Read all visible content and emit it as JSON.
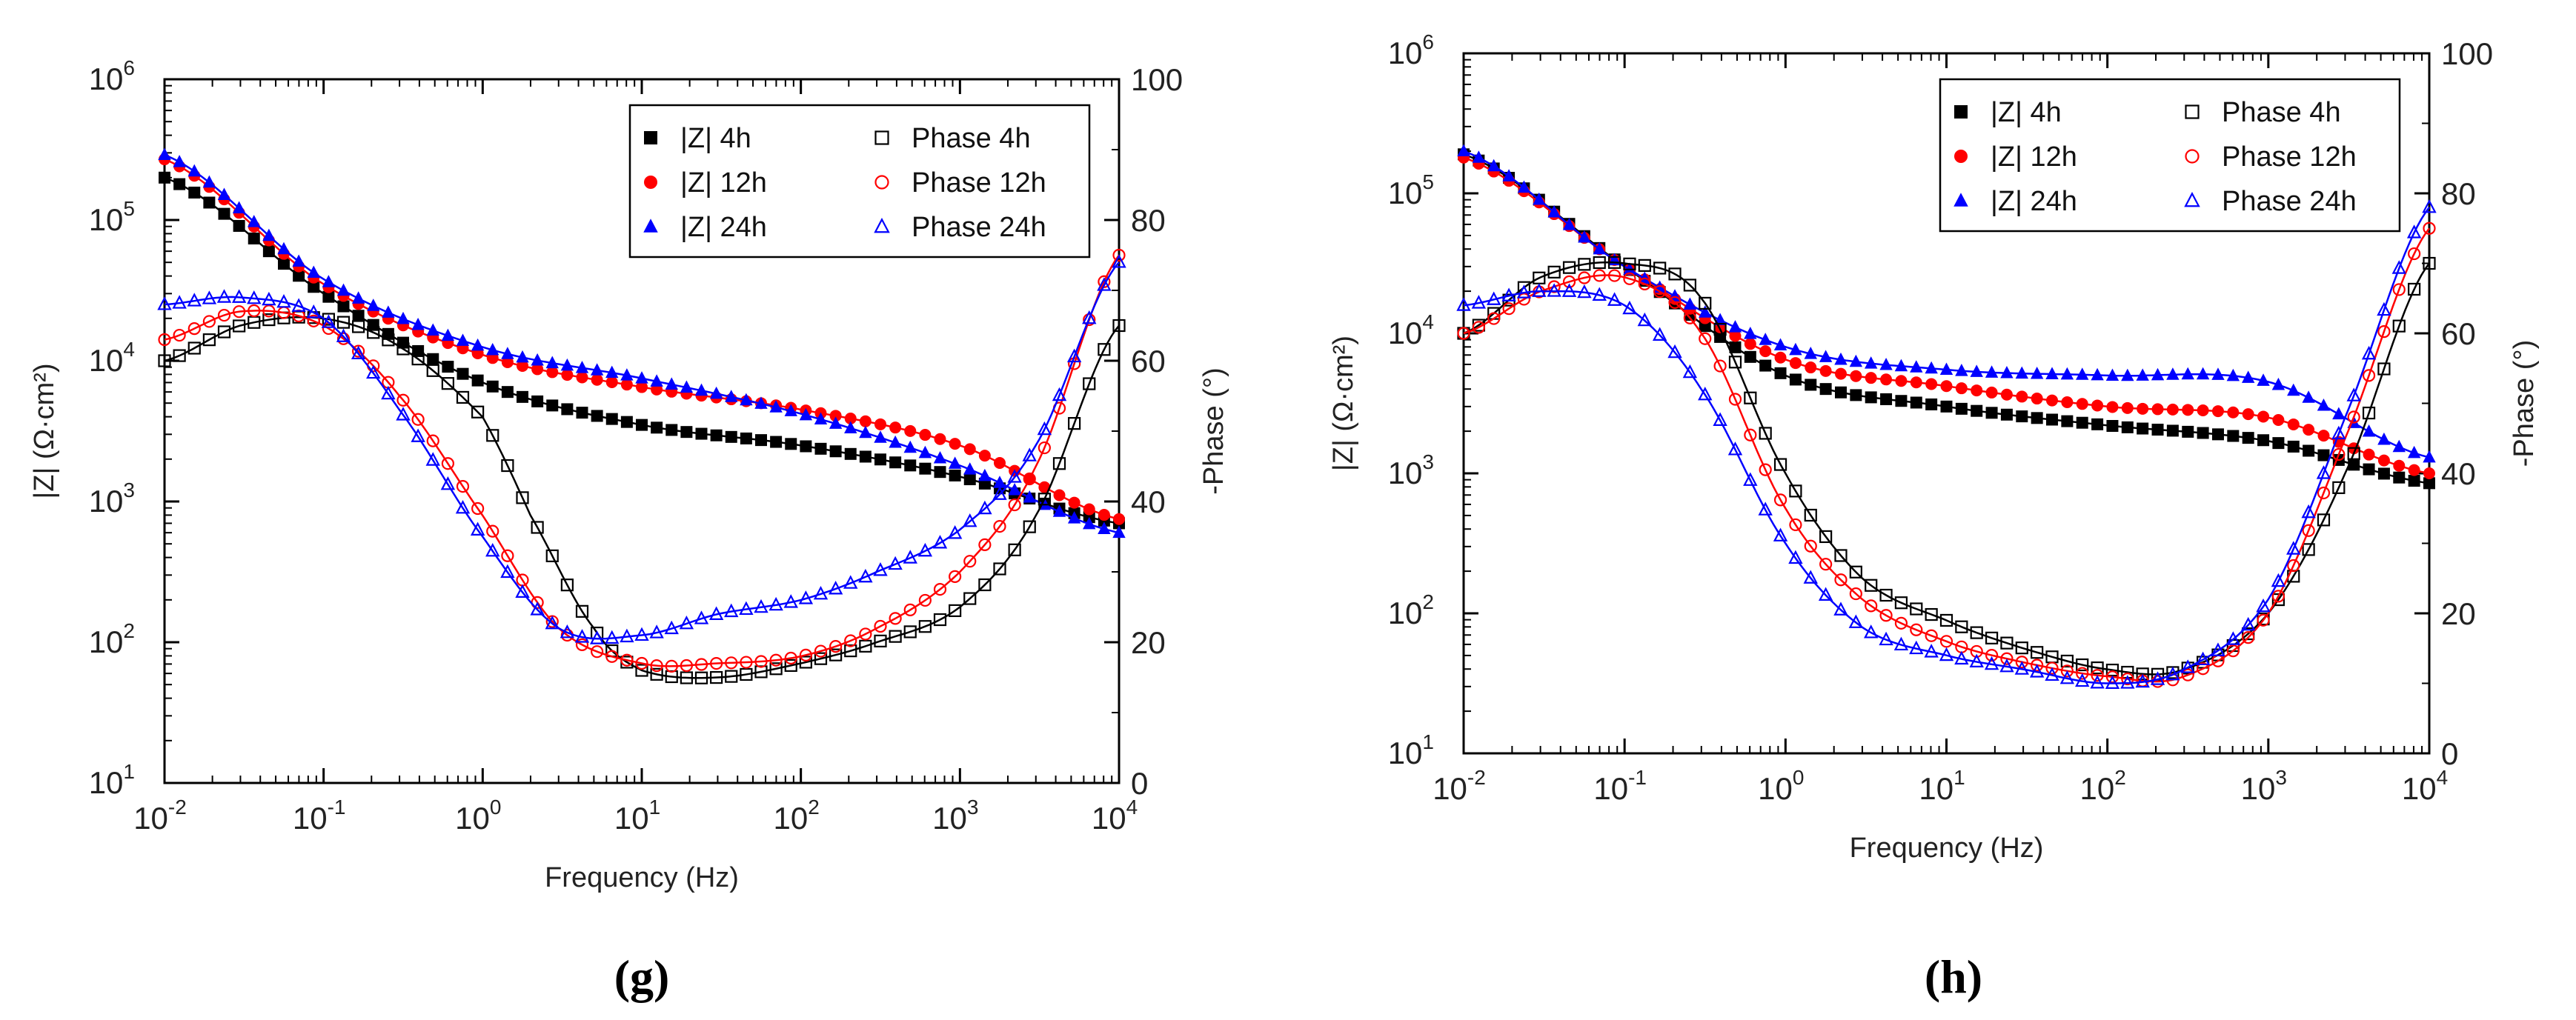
{
  "chart_data": [
    {
      "type": "scatter",
      "panel_label": "(g)",
      "xlabel": "Frequency (Hz)",
      "ylabel_left": "|Z| (Ω·cm²)",
      "ylabel_right": "-Phase (°)",
      "x_scale": "log",
      "y_left_scale": "log",
      "xlim": [
        0.01,
        10000
      ],
      "y_left_lim": [
        10,
        1000000
      ],
      "y_right_lim": [
        0,
        100
      ],
      "x_ticks": [
        {
          "base": "10",
          "exp": "-2"
        },
        {
          "base": "10",
          "exp": "-1"
        },
        {
          "base": "10",
          "exp": "0"
        },
        {
          "base": "10",
          "exp": "1"
        },
        {
          "base": "10",
          "exp": "2"
        },
        {
          "base": "10",
          "exp": "3"
        },
        {
          "base": "10",
          "exp": "4"
        }
      ],
      "y_left_ticks": [
        {
          "base": "10",
          "exp": "1"
        },
        {
          "base": "10",
          "exp": "2"
        },
        {
          "base": "10",
          "exp": "3"
        },
        {
          "base": "10",
          "exp": "4"
        },
        {
          "base": "10",
          "exp": "5"
        },
        {
          "base": "10",
          "exp": "6"
        }
      ],
      "y_right_ticks": [
        "0",
        "20",
        "40",
        "60",
        "80",
        "100"
      ],
      "legend_position": "top-right",
      "series": [
        {
          "name": "|Z| 4h",
          "axis": "left",
          "color": "#000000",
          "marker": "square-filled",
          "x": [
            0.01,
            0.1,
            1,
            10,
            100,
            1000,
            10000
          ],
          "y": [
            200000,
            30000,
            7000,
            3500,
            2500,
            1500,
            700
          ]
        },
        {
          "name": "|Z| 12h",
          "axis": "left",
          "color": "#ff0000",
          "marker": "circle-filled",
          "x": [
            0.01,
            0.1,
            1,
            10,
            100,
            1000,
            10000
          ],
          "y": [
            270000,
            35000,
            11000,
            6500,
            4500,
            2500,
            750
          ]
        },
        {
          "name": "|Z| 24h",
          "axis": "left",
          "color": "#0000ff",
          "marker": "triangle-filled",
          "x": [
            0.01,
            0.1,
            1,
            10,
            100,
            1000,
            10000
          ],
          "y": [
            290000,
            38000,
            12500,
            7500,
            4200,
            1800,
            600
          ]
        },
        {
          "name": "Phase 4h",
          "axis": "right",
          "color": "#000000",
          "marker": "square-open",
          "x": [
            0.01,
            0.03,
            0.1,
            0.3,
            1,
            2,
            5,
            10,
            30,
            100,
            300,
            1000,
            3000,
            10000
          ],
          "y": [
            60,
            65,
            66,
            62,
            52,
            38,
            22,
            16,
            15,
            17,
            20,
            25,
            38,
            65
          ]
        },
        {
          "name": "Phase 12h",
          "axis": "right",
          "color": "#ff0000",
          "marker": "circle-open",
          "x": [
            0.01,
            0.03,
            0.1,
            0.3,
            1,
            3,
            10,
            30,
            100,
            300,
            1000,
            3000,
            10000
          ],
          "y": [
            63,
            67,
            65,
            55,
            38,
            22,
            17,
            17,
            18,
            22,
            30,
            45,
            75
          ]
        },
        {
          "name": "Phase 24h",
          "axis": "right",
          "color": "#0000ff",
          "marker": "triangle-open",
          "x": [
            0.01,
            0.03,
            0.1,
            0.3,
            1,
            3,
            10,
            30,
            100,
            300,
            1000,
            3000,
            10000
          ],
          "y": [
            68,
            69,
            66,
            53,
            35,
            22,
            21,
            24,
            26,
            30,
            36,
            48,
            74
          ]
        }
      ]
    },
    {
      "type": "scatter",
      "panel_label": "(h)",
      "xlabel": "Frequency (Hz)",
      "ylabel_left": "|Z| (Ω·cm²)",
      "ylabel_right": "-Phase (°)",
      "x_scale": "log",
      "y_left_scale": "log",
      "xlim": [
        0.01,
        10000
      ],
      "y_left_lim": [
        10,
        1000000
      ],
      "y_right_lim": [
        0,
        100
      ],
      "x_ticks": [
        {
          "base": "10",
          "exp": "-2"
        },
        {
          "base": "10",
          "exp": "-1"
        },
        {
          "base": "10",
          "exp": "0"
        },
        {
          "base": "10",
          "exp": "1"
        },
        {
          "base": "10",
          "exp": "2"
        },
        {
          "base": "10",
          "exp": "3"
        },
        {
          "base": "10",
          "exp": "4"
        }
      ],
      "y_left_ticks": [
        {
          "base": "10",
          "exp": "1"
        },
        {
          "base": "10",
          "exp": "2"
        },
        {
          "base": "10",
          "exp": "3"
        },
        {
          "base": "10",
          "exp": "4"
        },
        {
          "base": "10",
          "exp": "5"
        },
        {
          "base": "10",
          "exp": "6"
        }
      ],
      "y_right_ticks": [
        "0",
        "20",
        "40",
        "60",
        "80",
        "100"
      ],
      "legend_position": "top-right",
      "series": [
        {
          "name": "|Z| 4h",
          "axis": "left",
          "color": "#000000",
          "marker": "square-filled",
          "x": [
            0.01,
            0.1,
            1,
            10,
            100,
            1000,
            10000
          ],
          "y": [
            190000,
            30000,
            5000,
            3000,
            2200,
            1700,
            850
          ]
        },
        {
          "name": "|Z| 12h",
          "axis": "left",
          "color": "#ff0000",
          "marker": "circle-filled",
          "x": [
            0.01,
            0.1,
            1,
            10,
            100,
            1000,
            10000
          ],
          "y": [
            180000,
            30000,
            6500,
            4200,
            3000,
            2500,
            1000
          ]
        },
        {
          "name": "|Z| 24h",
          "axis": "left",
          "color": "#0000ff",
          "marker": "triangle-filled",
          "x": [
            0.01,
            0.1,
            1,
            10,
            100,
            1000,
            10000
          ],
          "y": [
            200000,
            30000,
            8000,
            5500,
            5000,
            4500,
            1300
          ]
        },
        {
          "name": "Phase 4h",
          "axis": "right",
          "color": "#000000",
          "marker": "square-open",
          "x": [
            0.01,
            0.03,
            0.1,
            0.3,
            1,
            3,
            10,
            30,
            100,
            300,
            1000,
            3000,
            10000
          ],
          "y": [
            60,
            68,
            70,
            65,
            40,
            25,
            19,
            15,
            12,
            12,
            20,
            40,
            70
          ]
        },
        {
          "name": "Phase 12h",
          "axis": "right",
          "color": "#ff0000",
          "marker": "circle-open",
          "x": [
            0.01,
            0.03,
            0.1,
            0.3,
            1,
            3,
            10,
            30,
            100,
            300,
            1000,
            3000,
            10000
          ],
          "y": [
            60,
            66,
            68,
            60,
            35,
            22,
            16,
            13,
            11,
            11,
            20,
            45,
            75
          ]
        },
        {
          "name": "Phase 24h",
          "axis": "right",
          "color": "#0000ff",
          "marker": "triangle-open",
          "x": [
            0.01,
            0.03,
            0.1,
            0.3,
            1,
            3,
            10,
            30,
            100,
            300,
            1000,
            3000,
            10000
          ],
          "y": [
            64,
            66,
            64,
            52,
            30,
            18,
            14,
            12,
            10,
            12,
            22,
            48,
            78
          ]
        }
      ]
    }
  ]
}
